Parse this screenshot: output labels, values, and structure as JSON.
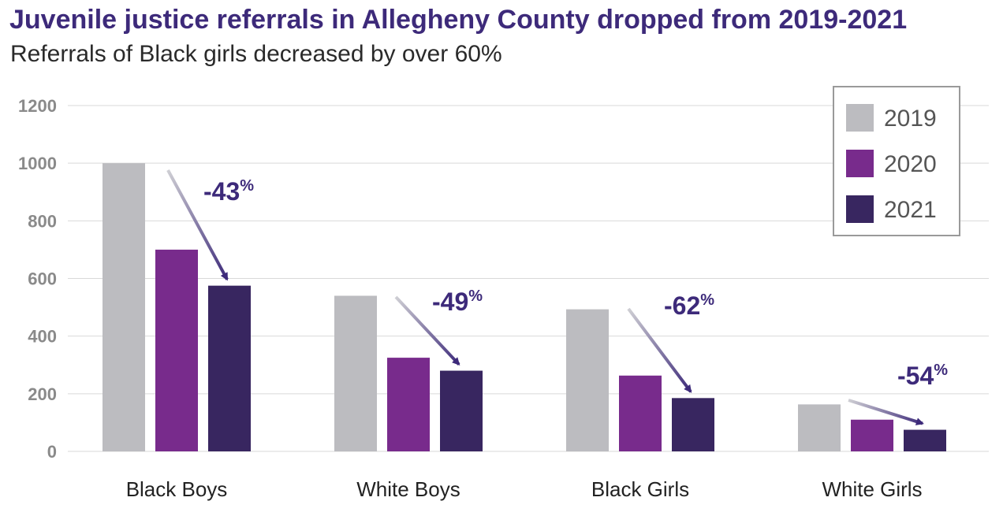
{
  "title": "Juvenile justice referrals in Allegheny County dropped from 2019-2021",
  "subtitle": "Referrals of Black girls decreased by over 60%",
  "colors": {
    "title": "#3d2a7a",
    "2019": "#bcbcc0",
    "2020": "#782b8c",
    "2021": "#382660",
    "grid": "#d9d9d9",
    "arrow": "#3d2a7a"
  },
  "chart_data": {
    "type": "bar",
    "categories": [
      "Black Boys",
      "White Boys",
      "Black Girls",
      "White Girls"
    ],
    "series": [
      {
        "name": "2019",
        "values": [
          1000,
          540,
          493,
          163
        ]
      },
      {
        "name": "2020",
        "values": [
          700,
          325,
          263,
          110
        ]
      },
      {
        "name": "2021",
        "values": [
          575,
          280,
          185,
          75
        ]
      }
    ],
    "ylim": [
      0,
      1200
    ],
    "yticks": [
      0,
      200,
      400,
      600,
      800,
      1000,
      1200
    ],
    "grid": true,
    "legend": "top-right",
    "annotations": [
      {
        "category": "Black Boys",
        "text": "-43",
        "suffix": "%"
      },
      {
        "category": "White Boys",
        "text": "-49",
        "suffix": "%"
      },
      {
        "category": "Black Girls",
        "text": "-62",
        "suffix": "%"
      },
      {
        "category": "White Girls",
        "text": "-54",
        "suffix": "%"
      }
    ]
  }
}
